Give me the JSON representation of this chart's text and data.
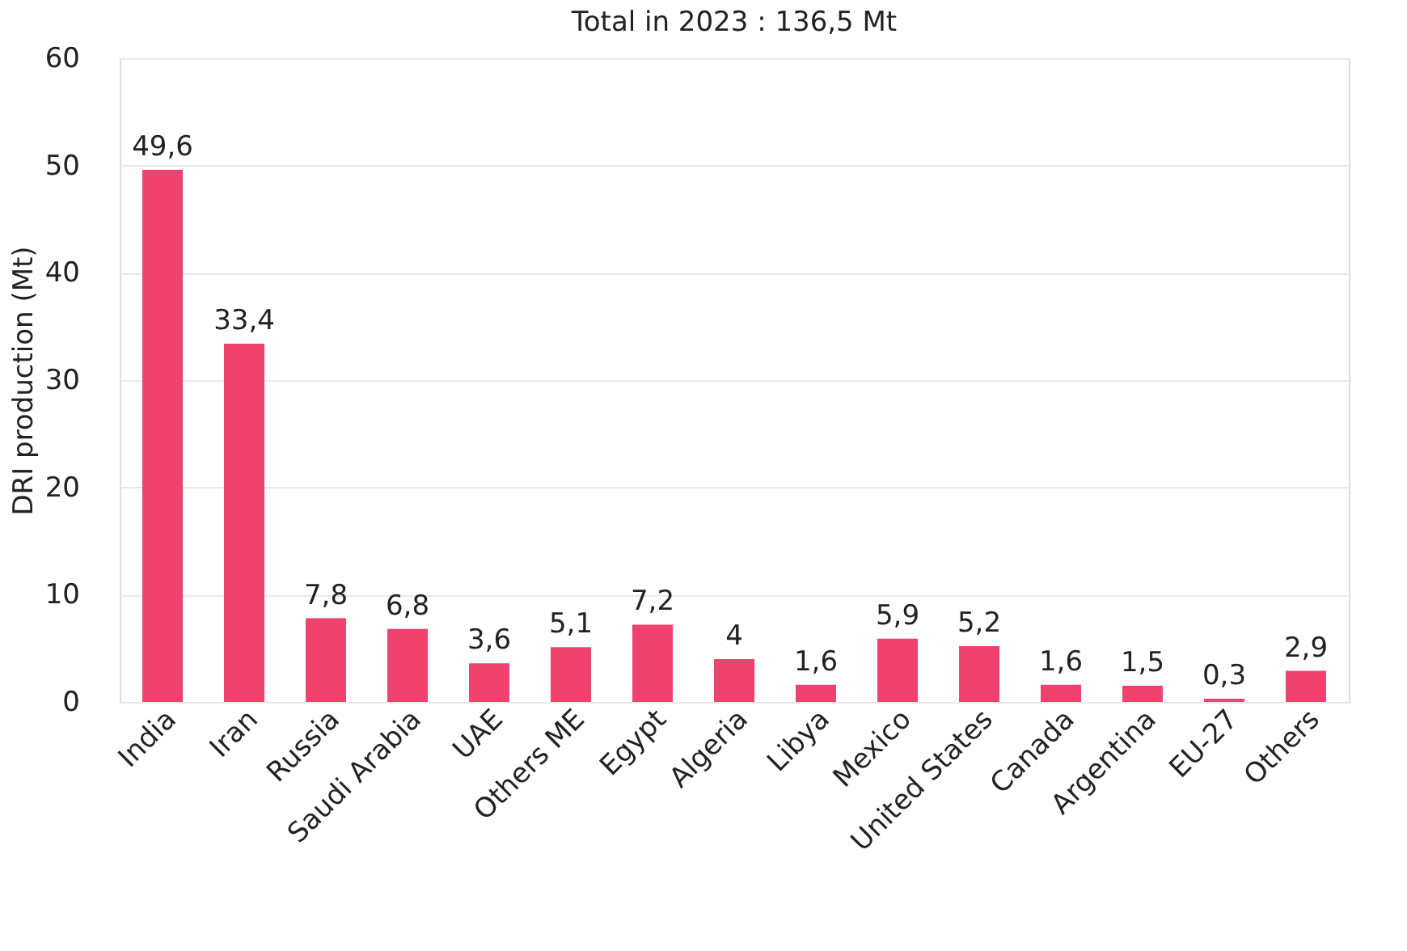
{
  "chart_data": {
    "type": "bar",
    "title": "Total in 2023 : 136,5 Mt",
    "ylabel": "DRI production (Mt)",
    "categories": [
      "India",
      "Iran",
      "Russia",
      "Saudi Arabia",
      "UAE",
      "Others ME",
      "Egypt",
      "Algeria",
      "Libya",
      "Mexico",
      "United States",
      "Canada",
      "Argentina",
      "EU-27",
      "Others"
    ],
    "values": [
      49.6,
      33.4,
      7.8,
      6.8,
      3.6,
      5.1,
      7.2,
      4,
      1.6,
      5.9,
      5.2,
      1.6,
      1.5,
      0.3,
      2.9
    ],
    "value_labels": [
      "49,6",
      "33,4",
      "7,8",
      "6,8",
      "3,6",
      "5,1",
      "7,2",
      "4",
      "1,6",
      "5,9",
      "5,2",
      "1,6",
      "1,5",
      "0,3",
      "2,9"
    ],
    "color": "#f0426e",
    "ylim": [
      0,
      60
    ],
    "yticks": [
      0,
      10,
      20,
      30,
      40,
      50,
      60
    ],
    "grid": "y"
  }
}
